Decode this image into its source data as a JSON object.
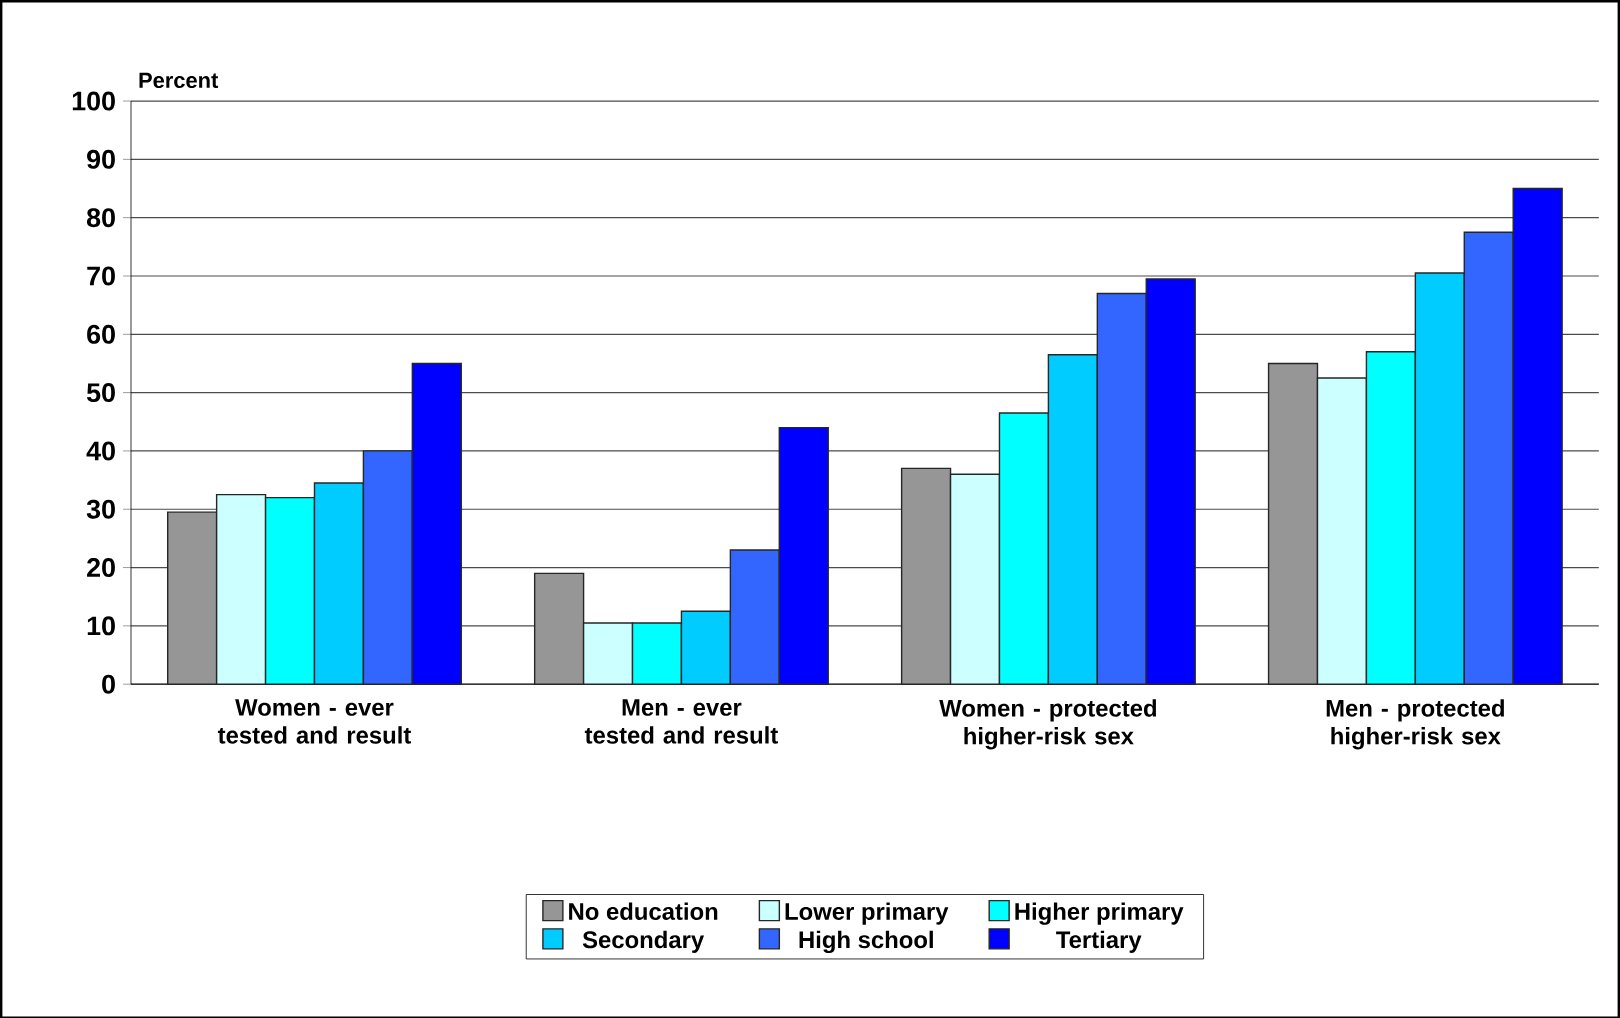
{
  "chart_data": {
    "type": "bar",
    "ylabel": "Percent",
    "categories": [
      "Women - ever tested and result",
      "Men - ever tested and result",
      "Women - protected higher-risk sex",
      "Men - protected higher-risk sex"
    ],
    "series": [
      {
        "name": "No education",
        "color": "#969696",
        "values": [
          29.5,
          19,
          37,
          55
        ]
      },
      {
        "name": "Lower primary",
        "color": "#ccffff",
        "values": [
          32.5,
          10.5,
          36,
          52.5
        ]
      },
      {
        "name": "Higher primary",
        "color": "#00ffff",
        "values": [
          32,
          10.5,
          46.5,
          57
        ]
      },
      {
        "name": "Secondary",
        "color": "#00ccff",
        "values": [
          34.5,
          12.5,
          56.5,
          70.5
        ]
      },
      {
        "name": "High school",
        "color": "#3366ff",
        "values": [
          40,
          23,
          67,
          77.5
        ]
      },
      {
        "name": "Tertiary",
        "color": "#0000ff",
        "values": [
          55,
          44,
          69.5,
          85
        ]
      }
    ],
    "ylim": [
      0,
      100
    ],
    "yticks": [
      0,
      10,
      20,
      30,
      40,
      50,
      60,
      70,
      80,
      90,
      100
    ],
    "grid": "y",
    "legend": "bottom"
  }
}
